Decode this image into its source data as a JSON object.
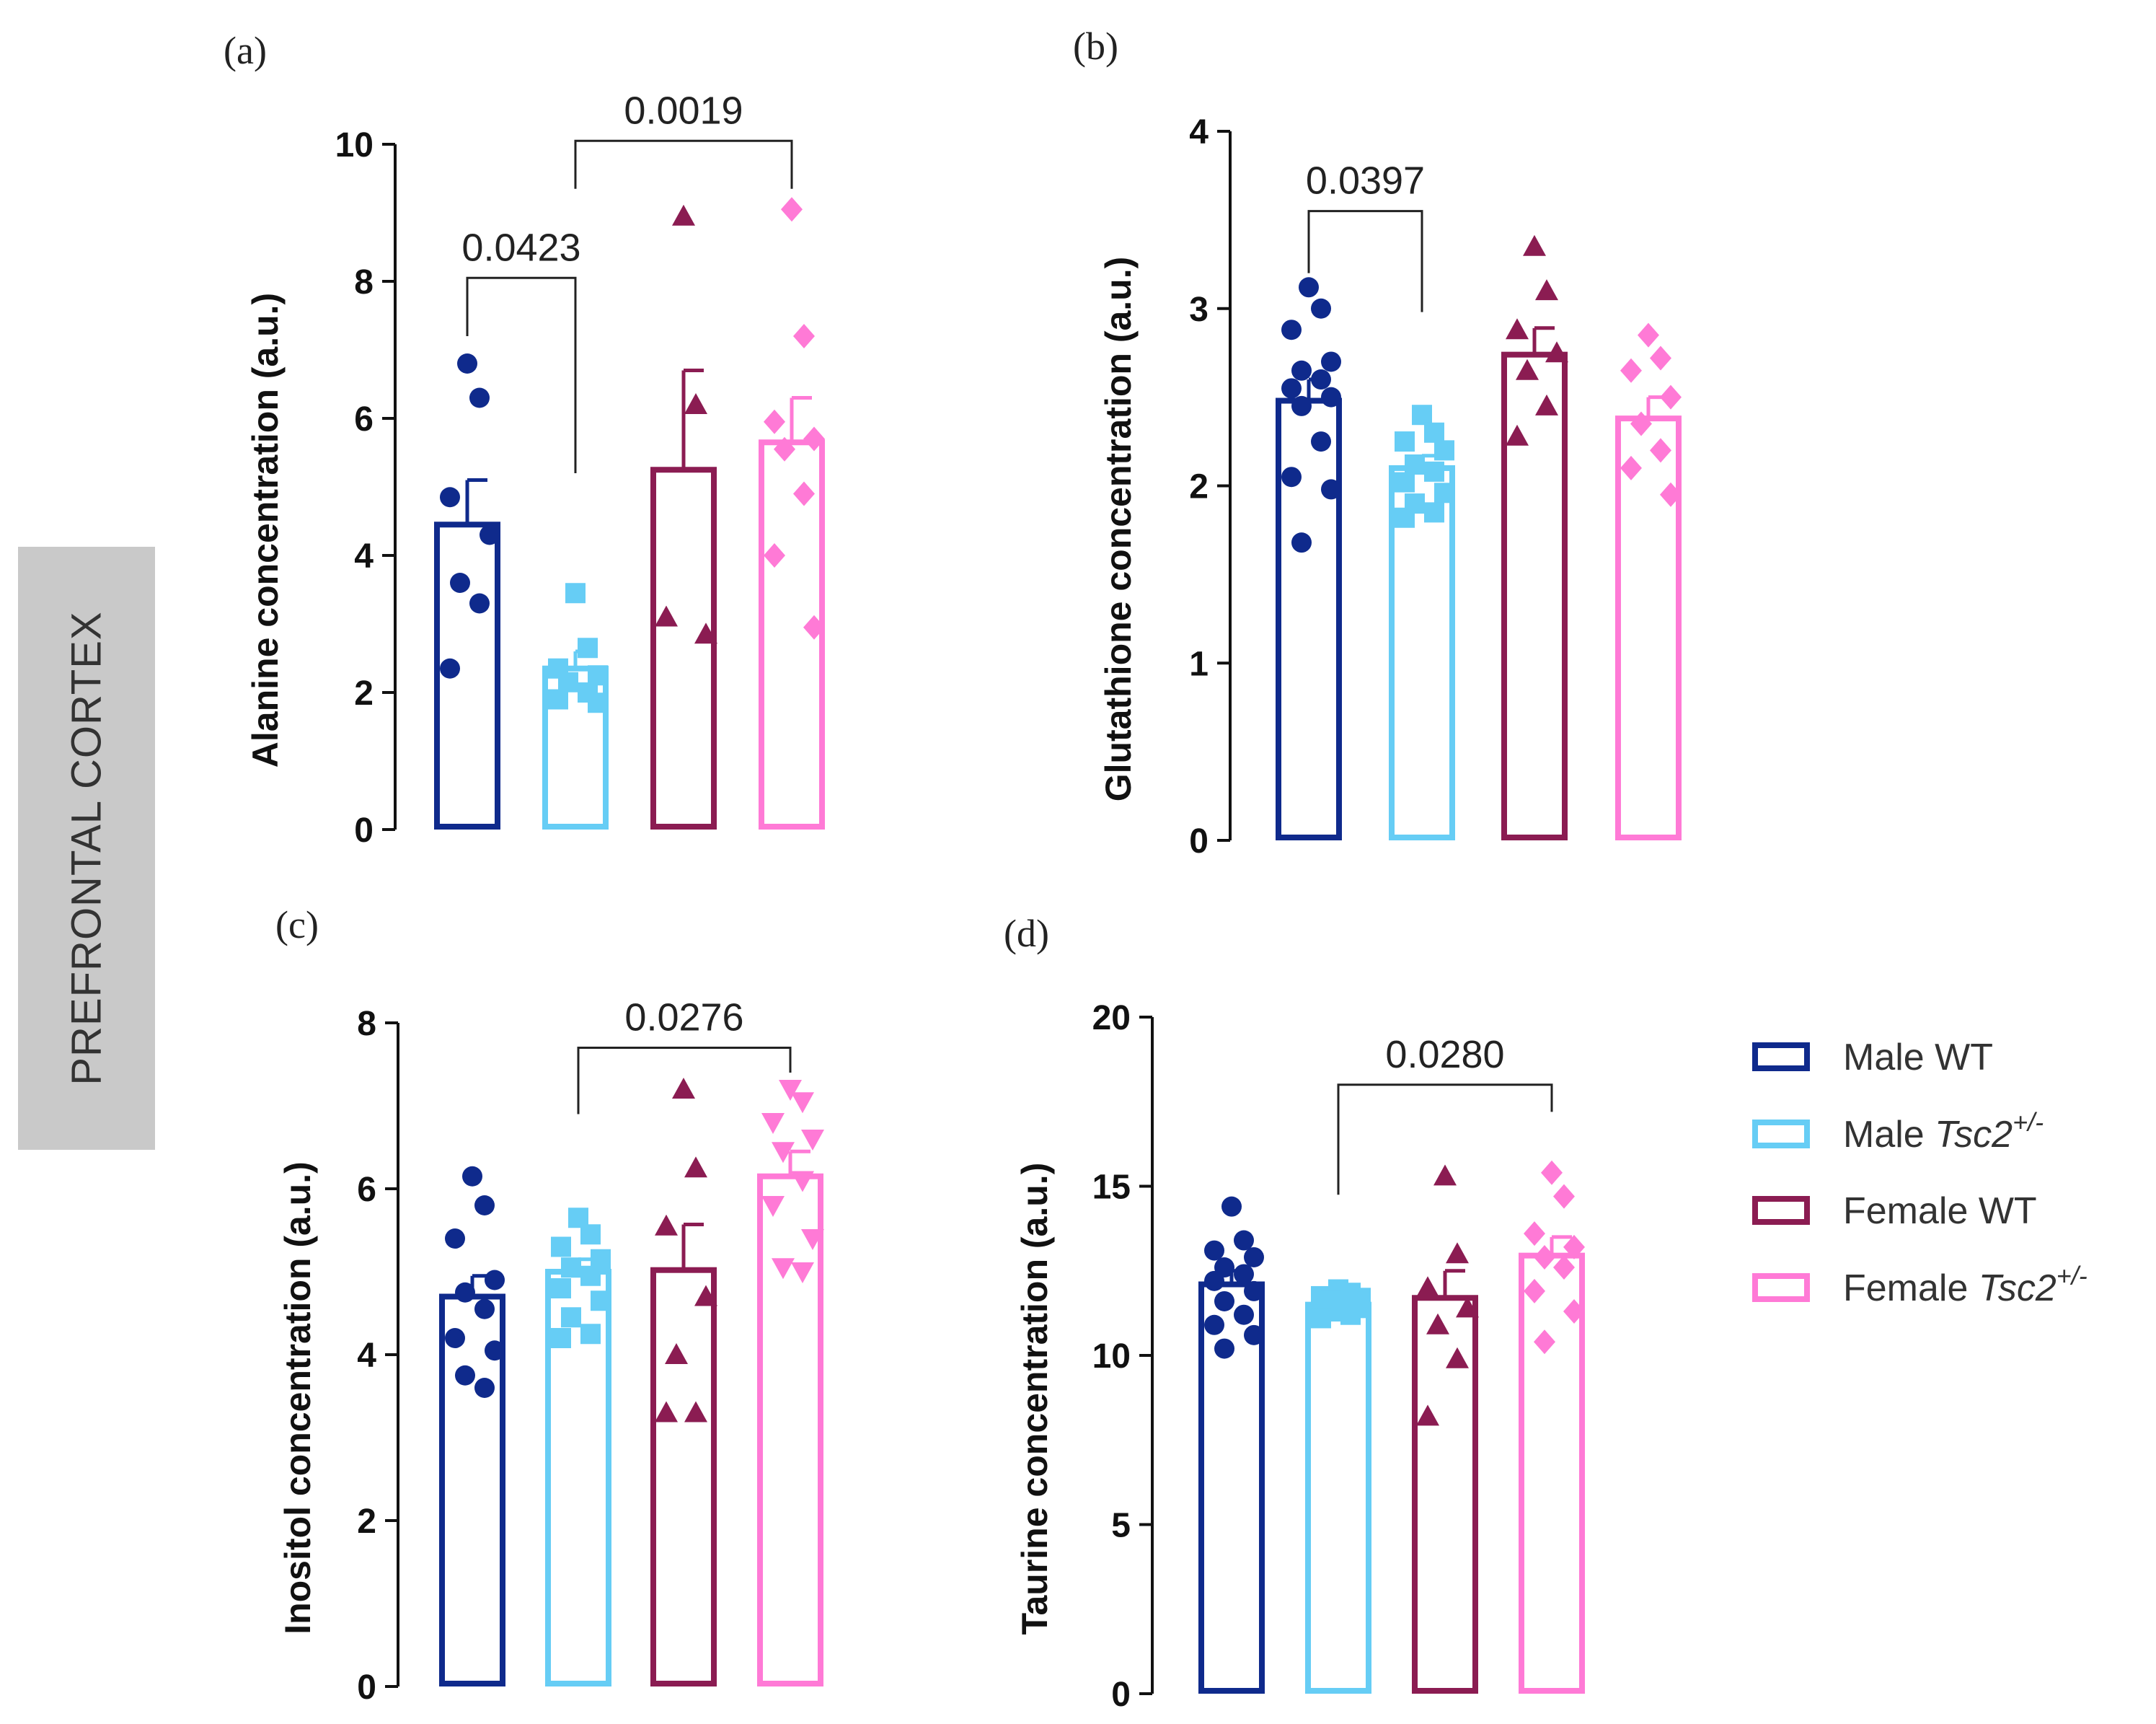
{
  "side_label": "PREFRONTAL CORTEX",
  "colors": {
    "male_wt": "#0f2a8c",
    "male_tsc2": "#66cdf5",
    "female_wt": "#8b1c52",
    "female_tsc2": "#ff7ad6",
    "axis": "#111111"
  },
  "legend": [
    {
      "series": "male_wt",
      "prefix": "Male WT",
      "italic": "",
      "sup": ""
    },
    {
      "series": "male_tsc2",
      "prefix": "Male ",
      "italic": "Tsc2",
      "sup": "+/-"
    },
    {
      "series": "female_wt",
      "prefix": "Female WT",
      "italic": "",
      "sup": ""
    },
    {
      "series": "female_tsc2",
      "prefix": "Female ",
      "italic": "Tsc2",
      "sup": "+/-"
    }
  ],
  "chart_data": [
    {
      "panel": "(a)",
      "type": "bar",
      "ylabel": "Alanine concentration (a.u.)",
      "ylim": [
        0,
        10
      ],
      "yticks": [
        0,
        2,
        4,
        6,
        8,
        10
      ],
      "categories": [
        "Male WT",
        "Male Tsc2+/-",
        "Female WT",
        "Female Tsc2+/-"
      ],
      "series_keys": [
        "male_wt",
        "male_tsc2",
        "female_wt",
        "female_tsc2"
      ],
      "markers": [
        "circle",
        "square",
        "triangle",
        "diamond"
      ],
      "values": [
        4.45,
        2.35,
        5.25,
        5.65
      ],
      "sem": [
        0.65,
        0.25,
        1.45,
        0.65
      ],
      "points": [
        [
          6.8,
          6.3,
          4.85,
          4.3,
          3.6,
          3.3,
          2.35
        ],
        [
          3.45,
          2.65,
          2.35,
          2.25,
          2.15,
          2.0,
          1.9,
          1.85
        ],
        [
          8.95,
          6.2,
          3.1,
          2.85
        ],
        [
          9.05,
          7.2,
          5.95,
          5.7,
          5.55,
          4.9,
          4.0,
          2.95
        ]
      ],
      "comparisons": [
        {
          "from": 0,
          "to": 1,
          "label": "0.0423",
          "bracket_y": 8.05,
          "from_y": 7.2,
          "to_y": 5.2
        },
        {
          "from": 1,
          "to": 3,
          "label": "0.0019",
          "bracket_y": 10.05,
          "from_y": 9.35,
          "to_y": 9.35
        }
      ]
    },
    {
      "panel": "(b)",
      "type": "bar",
      "ylabel": "Glutathione concentration (a.u.)",
      "ylim": [
        0,
        4
      ],
      "yticks": [
        0,
        1,
        2,
        3,
        4
      ],
      "categories": [
        "Male WT",
        "Male Tsc2+/-",
        "Female WT",
        "Female Tsc2+/-"
      ],
      "series_keys": [
        "male_wt",
        "male_tsc2",
        "female_wt",
        "female_tsc2"
      ],
      "markers": [
        "circle",
        "square",
        "triangle",
        "diamond"
      ],
      "values": [
        2.48,
        2.1,
        2.74,
        2.38
      ],
      "sem": [
        0.12,
        0.07,
        0.15,
        0.12
      ],
      "points": [
        [
          3.12,
          3.0,
          2.88,
          2.7,
          2.65,
          2.6,
          2.55,
          2.5,
          2.45,
          2.25,
          2.05,
          1.98,
          1.68
        ],
        [
          2.4,
          2.3,
          2.25,
          2.2,
          2.12,
          2.08,
          2.02,
          1.96,
          1.9,
          1.85,
          1.82
        ],
        [
          3.35,
          3.1,
          2.88,
          2.75,
          2.65,
          2.45,
          2.28
        ],
        [
          2.85,
          2.72,
          2.65,
          2.5,
          2.35,
          2.2,
          2.1,
          1.95
        ]
      ],
      "comparisons": [
        {
          "from": 0,
          "to": 1,
          "label": "0.0397",
          "bracket_y": 3.55,
          "from_y": 3.2,
          "to_y": 2.98
        }
      ]
    },
    {
      "panel": "(c)",
      "type": "bar",
      "ylabel": "Inositol concentration (a.u.)",
      "ylim": [
        0,
        8
      ],
      "yticks": [
        0,
        2,
        4,
        6,
        8
      ],
      "categories": [
        "Male WT",
        "Male Tsc2+/-",
        "Female WT",
        "Female Tsc2+/-"
      ],
      "series_keys": [
        "male_wt",
        "male_tsc2",
        "female_wt",
        "female_tsc2"
      ],
      "markers": [
        "circle",
        "square",
        "triangle",
        "inverted-triangle"
      ],
      "values": [
        4.7,
        5.0,
        5.02,
        6.15
      ],
      "sem": [
        0.25,
        0.15,
        0.55,
        0.3
      ],
      "points": [
        [
          6.15,
          5.8,
          5.4,
          4.9,
          4.75,
          4.55,
          4.2,
          4.05,
          3.75,
          3.6
        ],
        [
          5.65,
          5.45,
          5.3,
          5.15,
          5.05,
          4.95,
          4.8,
          4.65,
          4.45,
          4.25,
          4.2
        ],
        [
          7.2,
          6.25,
          5.55,
          4.7,
          4.0,
          3.3,
          3.3
        ],
        [
          7.2,
          7.05,
          6.8,
          6.6,
          6.45,
          6.1,
          5.8,
          5.4,
          5.05,
          5.0
        ]
      ],
      "comparisons": [
        {
          "from": 1,
          "to": 3,
          "label": "0.0276",
          "bracket_y": 7.7,
          "from_y": 6.9,
          "to_y": 7.4
        }
      ]
    },
    {
      "panel": "(d)",
      "type": "bar",
      "ylabel": "Taurine concentration (a.u.)",
      "ylim": [
        0,
        20
      ],
      "yticks": [
        0,
        5,
        10,
        15,
        20
      ],
      "categories": [
        "Male WT",
        "Male Tsc2+/-",
        "Female WT",
        "Female Tsc2+/-"
      ],
      "series_keys": [
        "male_wt",
        "male_tsc2",
        "female_wt",
        "female_tsc2"
      ],
      "markers": [
        "circle",
        "square",
        "triangle",
        "diamond"
      ],
      "values": [
        12.1,
        11.5,
        11.7,
        12.95
      ],
      "sem": [
        0.4,
        0.15,
        0.8,
        0.55
      ],
      "points": [
        [
          14.4,
          13.4,
          13.1,
          12.9,
          12.6,
          12.4,
          12.2,
          11.9,
          11.6,
          11.2,
          10.9,
          10.6,
          10.2
        ],
        [
          11.95,
          11.85,
          11.75,
          11.7,
          11.6,
          11.55,
          11.45,
          11.4,
          11.3,
          11.2,
          11.1
        ],
        [
          15.3,
          13.0,
          12.0,
          11.4,
          10.9,
          9.9,
          8.2
        ],
        [
          15.4,
          14.7,
          13.6,
          13.2,
          12.9,
          12.6,
          11.9,
          11.3,
          10.4
        ]
      ],
      "comparisons": [
        {
          "from": 1,
          "to": 3,
          "label": "0.0280",
          "bracket_y": 18.0,
          "from_y": 14.75,
          "to_y": 17.2
        }
      ]
    }
  ]
}
